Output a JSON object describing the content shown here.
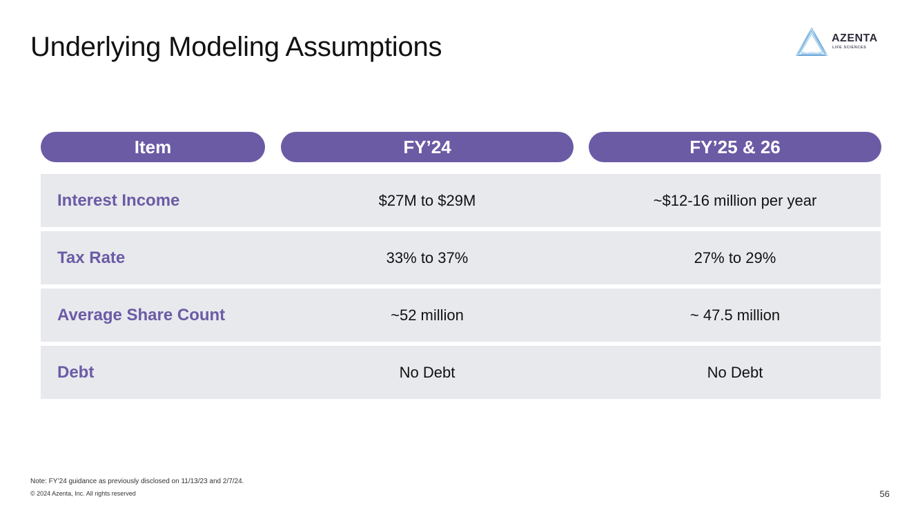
{
  "slide": {
    "title": "Underlying Modeling Assumptions",
    "page_number": "56"
  },
  "logo": {
    "name": "AZENTA",
    "subtitle": "LIFE SCIENCES"
  },
  "table": {
    "headers": [
      "Item",
      "FY’24",
      "FY’25 & 26"
    ],
    "rows": [
      {
        "item": "Interest Income",
        "fy24": "$27M to $29M",
        "fy25_26": "~$12-16 million per year"
      },
      {
        "item": "Tax Rate",
        "fy24": "33% to 37%",
        "fy25_26": "27% to 29%"
      },
      {
        "item": "Average Share Count",
        "fy24": "~52 million",
        "fy25_26": "~ 47.5 million"
      },
      {
        "item": "Debt",
        "fy24": "No Debt",
        "fy25_26": "No Debt"
      }
    ]
  },
  "footer": {
    "note": "Note: FY’24 guidance as previously disclosed on 11/13/23 and 2/7/24.",
    "copyright": "© 2024 Azenta, Inc.  All rights reserved"
  },
  "colors": {
    "accent": "#6b5ba5",
    "row_background": "#e8e9ed",
    "text": "#111111"
  }
}
